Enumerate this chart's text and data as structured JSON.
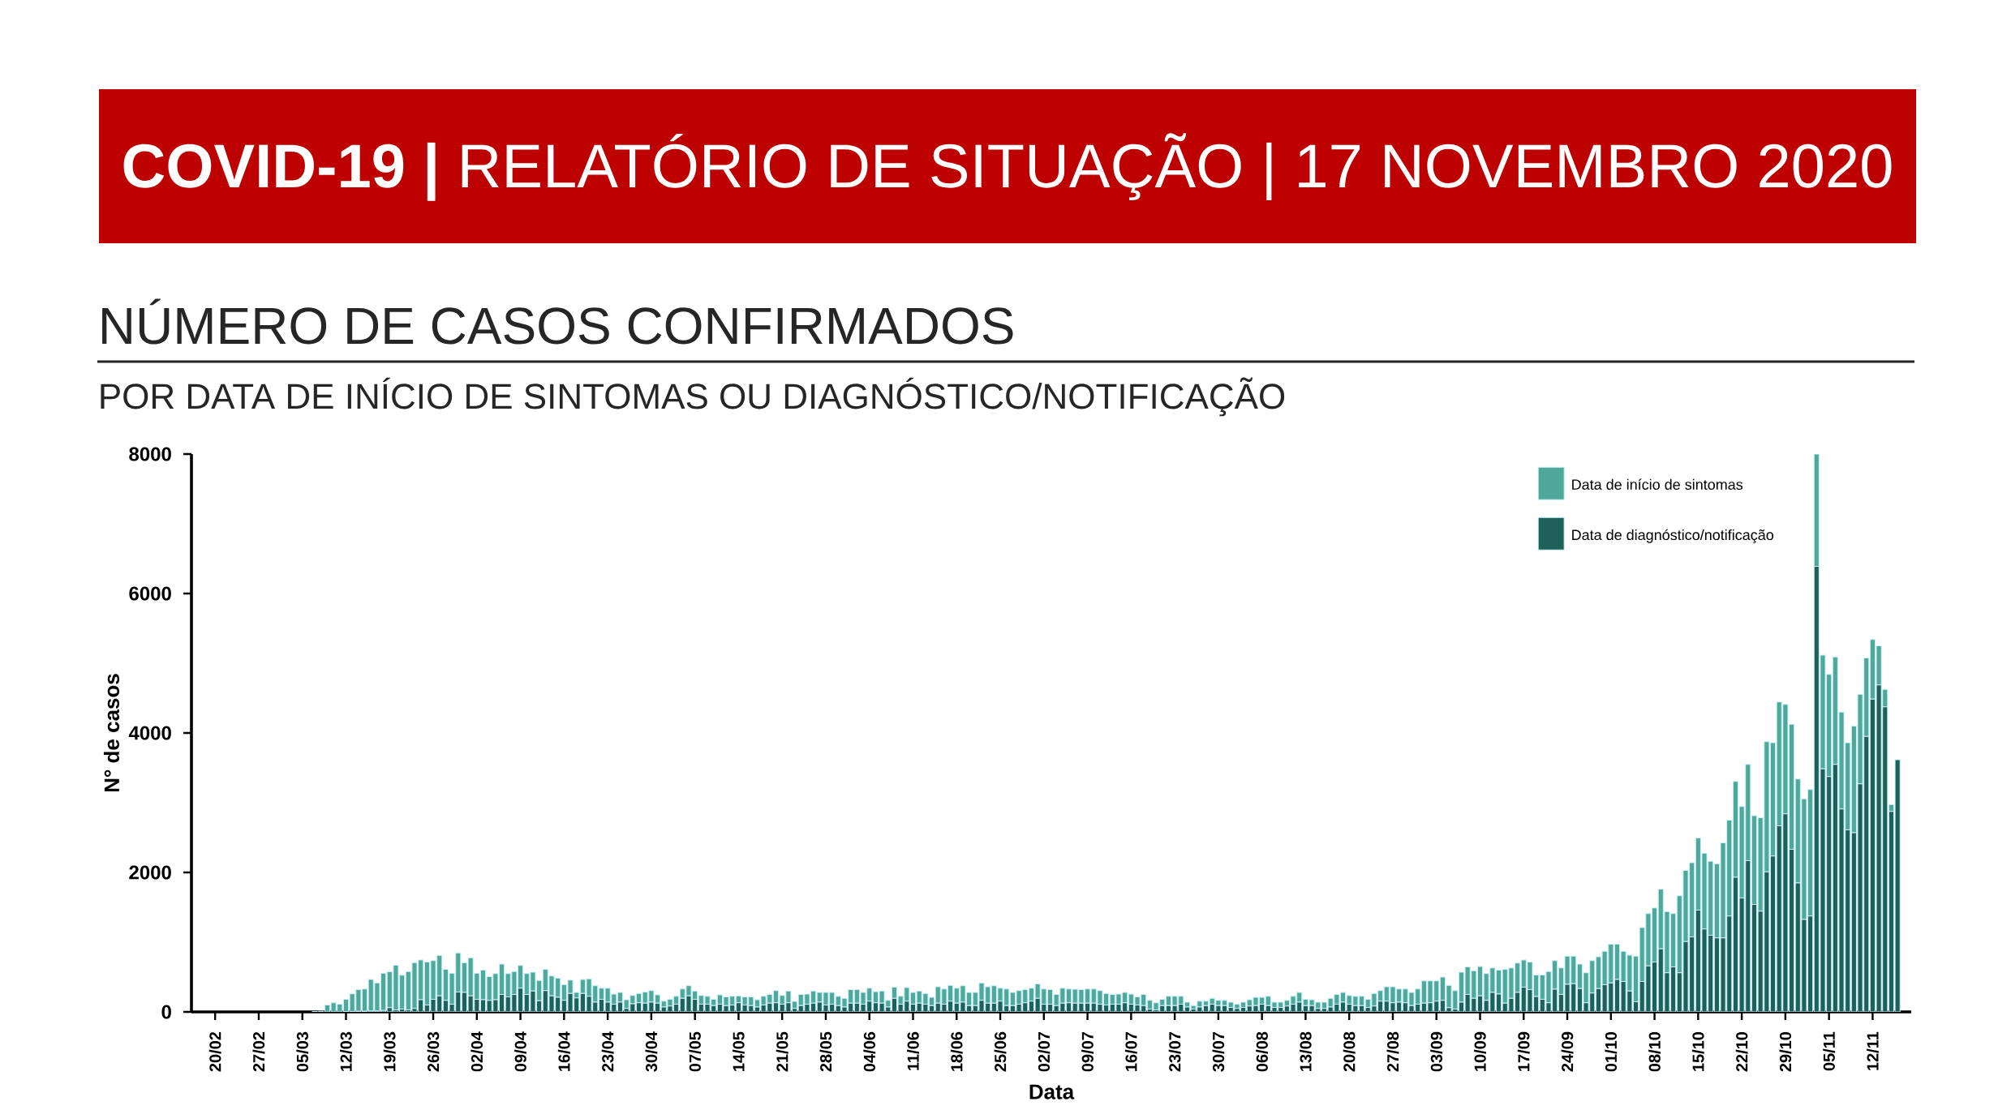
{
  "chart_data": {
    "type": "bar",
    "stacked": true,
    "title": "**COVID-19 |** RELATÓRIO DE SITUAÇÃO | 17 NOVEMBRO 2020",
    "subtitle": "NÚMERO DE CASOS CONFIRMADOS",
    "annotations": [
      "POR DATA DE INÍCIO DE SINTOMAS OU DIAGNÓSTICO/NOTIFICAÇÃO"
    ],
    "xlabel": "Data",
    "ylabel": "N° de casos",
    "ylim": [
      0,
      8000
    ],
    "yticks": [
      0,
      2000,
      4000,
      6000,
      8000
    ],
    "legend": "top right",
    "categories": [
      "20/02",
      null,
      null,
      null,
      null,
      null,
      null,
      "27/02",
      null,
      null,
      null,
      null,
      null,
      null,
      "05/03",
      null,
      null,
      null,
      null,
      null,
      null,
      "12/03",
      null,
      null,
      null,
      null,
      null,
      null,
      "19/03",
      null,
      null,
      null,
      null,
      null,
      null,
      "26/03",
      null,
      null,
      null,
      null,
      null,
      null,
      "02/04",
      null,
      null,
      null,
      null,
      null,
      null,
      "09/04",
      null,
      null,
      null,
      null,
      null,
      null,
      "16/04",
      null,
      null,
      null,
      null,
      null,
      null,
      "23/04",
      null,
      null,
      null,
      null,
      null,
      null,
      "30/04",
      null,
      null,
      null,
      null,
      null,
      null,
      "07/05",
      null,
      null,
      null,
      null,
      null,
      null,
      "14/05",
      null,
      null,
      null,
      null,
      null,
      null,
      "21/05",
      null,
      null,
      null,
      null,
      null,
      null,
      "28/05",
      null,
      null,
      null,
      null,
      null,
      null,
      "04/06",
      null,
      null,
      null,
      null,
      null,
      null,
      "11/06",
      null,
      null,
      null,
      null,
      null,
      null,
      "18/06",
      null,
      null,
      null,
      null,
      null,
      null,
      "25/06",
      null,
      null,
      null,
      null,
      null,
      null,
      "02/07",
      null,
      null,
      null,
      null,
      null,
      null,
      "09/07",
      null,
      null,
      null,
      null,
      null,
      null,
      "16/07",
      null,
      null,
      null,
      null,
      null,
      null,
      "23/07",
      null,
      null,
      null,
      null,
      null,
      null,
      "30/07",
      null,
      null,
      null,
      null,
      null,
      null,
      "06/08",
      null,
      null,
      null,
      null,
      null,
      null,
      "13/08",
      null,
      null,
      null,
      null,
      null,
      null,
      "20/08",
      null,
      null,
      null,
      null,
      null,
      null,
      "27/08",
      null,
      null,
      null,
      null,
      null,
      null,
      "03/09",
      null,
      null,
      null,
      null,
      null,
      null,
      "10/09",
      null,
      null,
      null,
      null,
      null,
      null,
      "17/09",
      null,
      null,
      null,
      null,
      null,
      null,
      "24/09",
      null,
      null,
      null,
      null,
      null,
      null,
      "01/10",
      null,
      null,
      null,
      null,
      null,
      null,
      "08/10",
      null,
      null,
      null,
      null,
      null,
      null,
      "15/10",
      null,
      null,
      null,
      null,
      null,
      null,
      "22/10",
      null,
      null,
      null,
      null,
      null,
      null,
      "29/10",
      null,
      null,
      null,
      null,
      null,
      null,
      "05/11",
      null,
      null,
      null,
      null,
      null,
      null,
      "12/11",
      null,
      null,
      null,
      null
    ],
    "series": [
      {
        "name": "Data de diagnóstico/notificação",
        "color": "#1e6158",
        "values": [
          0,
          0,
          0,
          0,
          0,
          0,
          0,
          0,
          0,
          0,
          0,
          0,
          0,
          0,
          0,
          0,
          0,
          0,
          0,
          0,
          0,
          5,
          5,
          10,
          10,
          15,
          15,
          20,
          60,
          30,
          40,
          30,
          50,
          175,
          100,
          180,
          230,
          165,
          110,
          285,
          280,
          230,
          180,
          175,
          165,
          175,
          250,
          215,
          250,
          340,
          250,
          300,
          160,
          305,
          230,
          210,
          165,
          265,
          200,
          265,
          225,
          140,
          180,
          140,
          110,
          140,
          50,
          115,
          130,
          125,
          140,
          125,
          70,
          85,
          110,
          195,
          230,
          180,
          110,
          110,
          90,
          110,
          90,
          100,
          130,
          100,
          90,
          70,
          100,
          125,
          130,
          110,
          130,
          50,
          90,
          110,
          125,
          140,
          100,
          110,
          90,
          70,
          125,
          125,
          110,
          155,
          130,
          125,
          70,
          195,
          110,
          155,
          110,
          125,
          110,
          90,
          125,
          110,
          155,
          125,
          140,
          90,
          90,
          165,
          125,
          125,
          155,
          90,
          90,
          110,
          130,
          155,
          195,
          110,
          110,
          90,
          125,
          130,
          125,
          125,
          125,
          125,
          110,
          100,
          110,
          110,
          130,
          110,
          100,
          90,
          40,
          30,
          90,
          90,
          90,
          110,
          70,
          40,
          70,
          90,
          110,
          90,
          90,
          65,
          50,
          65,
          85,
          90,
          110,
          90,
          65,
          65,
          85,
          110,
          140,
          90,
          90,
          50,
          50,
          70,
          110,
          140,
          110,
          90,
          90,
          65,
          85,
          155,
          155,
          130,
          140,
          130,
          90,
          110,
          125,
          130,
          155,
          165,
          60,
          40,
          140,
          250,
          195,
          230,
          165,
          280,
          255,
          125,
          195,
          280,
          355,
          320,
          220,
          180,
          130,
          325,
          250,
          395,
          405,
          335,
          130,
          270,
          335,
          390,
          415,
          465,
          435,
          300,
          145,
          435,
          660,
          715,
          905,
          560,
          645,
          560,
          1010,
          1075,
          1460,
          1190,
          1100,
          1060,
          1060,
          1375,
          1930,
          1635,
          2170,
          1540,
          1445,
          2010,
          2235,
          2670,
          2840,
          2330,
          1850,
          1325,
          1375,
          6390,
          3485,
          3375,
          3550,
          2910,
          2610,
          2570,
          3270,
          3950,
          4485,
          4690,
          4375,
          2875,
          3615
        ]
      },
      {
        "name": "Data de início de sintomas",
        "color": "#4fa898",
        "values": [
          0,
          0,
          0,
          0,
          0,
          0,
          0,
          0,
          0,
          0,
          0,
          0,
          0,
          0,
          0,
          0,
          5,
          10,
          100,
          130,
          110,
          175,
          255,
          310,
          320,
          450,
          400,
          535,
          515,
          640,
          485,
          550,
          655,
          570,
          615,
          555,
          580,
          445,
          445,
          560,
          425,
          545,
          375,
          425,
          340,
          375,
          435,
          335,
          330,
          325,
          300,
          270,
          290,
          305,
          285,
          275,
          225,
          190,
          80,
          200,
          250,
          235,
          160,
          200,
          145,
          140,
          125,
          120,
          135,
          160,
          165,
          120,
          85,
          95,
          115,
          135,
          145,
          120,
          125,
          115,
          90,
          135,
          125,
          125,
          100,
          115,
          125,
          105,
          125,
          125,
          175,
          125,
          170,
          100,
          160,
          145,
          175,
          140,
          180,
          170,
          135,
          125,
          195,
          195,
          170,
          185,
          160,
          175,
          95,
          160,
          115,
          195,
          170,
          175,
          155,
          120,
          235,
          220,
          225,
          215,
          235,
          190,
          190,
          250,
          235,
          250,
          185,
          240,
          190,
          195,
          190,
          185,
          205,
          220,
          210,
          160,
          215,
          200,
          200,
          195,
          205,
          205,
          195,
          165,
          140,
          145,
          150,
          145,
          115,
          160,
          125,
          100,
          90,
          135,
          135,
          115,
          70,
          50,
          85,
          65,
          85,
          75,
          75,
          75,
          60,
          75,
          90,
          120,
          100,
          135,
          75,
          75,
          80,
          115,
          140,
          90,
          85,
          90,
          90,
          125,
          140,
          140,
          125,
          135,
          135,
          115,
          180,
          150,
          205,
          230,
          190,
          200,
          190,
          220,
          320,
          315,
          290,
          335,
          320,
          265,
          430,
          395,
          395,
          420,
          385,
          350,
          345,
          485,
          435,
          420,
          390,
          395,
          310,
          350,
          450,
          410,
          380,
          405,
          395,
          350,
          430,
          465,
          455,
          480,
          555,
          505,
          435,
          515,
          655,
          775,
          750,
          775,
          855,
          880,
          765,
          1105,
          1020,
          1065,
          1035,
          1085,
          1060,
          1065,
          1365,
          1375,
          1375,
          1310,
          1380,
          1275,
          1340,
          1865,
          1625,
          1775,
          1570,
          1795,
          1490,
          1730,
          1815,
          1610,
          1630,
          1465,
          1540,
          1390,
          1250,
          1530,
          1285,
          1125,
          855,
          560,
          250,
          100,
          0
        ]
      }
    ]
  }
}
